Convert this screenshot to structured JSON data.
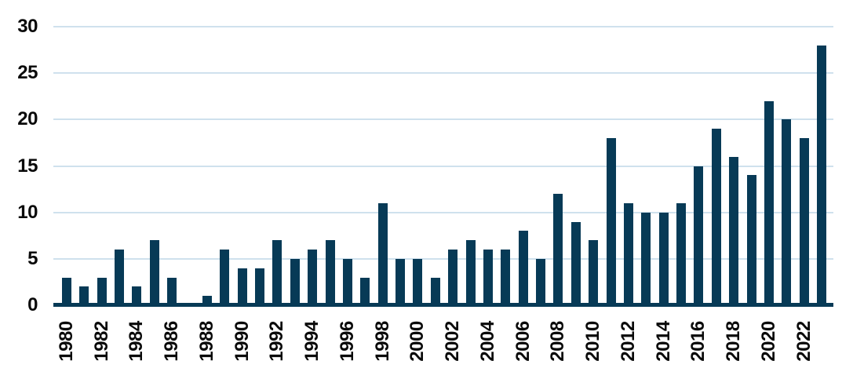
{
  "chart_data": {
    "type": "bar",
    "title": "",
    "xlabel": "",
    "ylabel": "",
    "categories": [
      "1980",
      "1981",
      "1982",
      "1983",
      "1984",
      "1985",
      "1986",
      "1987",
      "1988",
      "1989",
      "1990",
      "1991",
      "1992",
      "1993",
      "1994",
      "1995",
      "1996",
      "1997",
      "1998",
      "1999",
      "2000",
      "2001",
      "2002",
      "2003",
      "2004",
      "2005",
      "2006",
      "2007",
      "2008",
      "2009",
      "2010",
      "2011",
      "2012",
      "2013",
      "2014",
      "2015",
      "2016",
      "2017",
      "2018",
      "2019",
      "2020",
      "2021",
      "2022",
      "2023"
    ],
    "values": [
      3,
      2,
      3,
      6,
      2,
      7,
      3,
      0,
      1,
      6,
      4,
      4,
      7,
      5,
      6,
      7,
      5,
      3,
      11,
      5,
      5,
      3,
      6,
      7,
      6,
      6,
      8,
      5,
      12,
      9,
      7,
      18,
      11,
      10,
      10,
      11,
      15,
      19,
      16,
      14,
      22,
      20,
      18,
      28
    ],
    "ylim": [
      0,
      30
    ],
    "yticks": [
      0,
      5,
      10,
      15,
      20,
      25,
      30
    ],
    "xtick_labels": [
      "1980",
      "1982",
      "1984",
      "1986",
      "1988",
      "1990",
      "1992",
      "1994",
      "1996",
      "1998",
      "2000",
      "2002",
      "2004",
      "2006",
      "2008",
      "2010",
      "2012",
      "2014",
      "2016",
      "2018",
      "2020",
      "2022"
    ],
    "grid": true,
    "legend_position": "none",
    "colors": {
      "bar": "#073a56",
      "gridline": "#cfe1ed",
      "axis_line": "#073a56",
      "tick_label": "#0a0a0a",
      "background": "#ffffff"
    }
  }
}
